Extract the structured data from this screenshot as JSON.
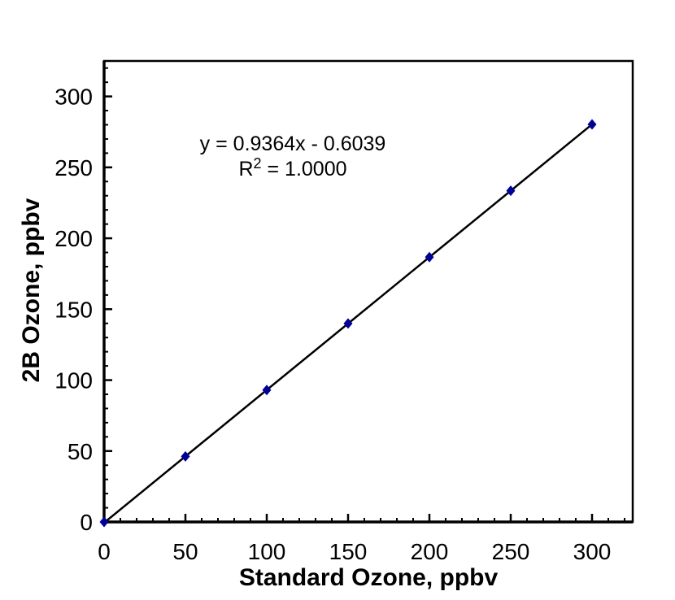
{
  "chart": {
    "xlabel": "Standard Ozone, ppbv",
    "ylabel": "2B Ozone, ppbv",
    "equation_line1": "y = 0.9364x - 0.6039",
    "r_squared_label": {
      "base": "R",
      "sup": "2",
      "rest": " = 1.0000"
    }
  },
  "chart_data": {
    "type": "scatter",
    "title": "",
    "xlabel": "Standard Ozone, ppbv",
    "ylabel": "2B Ozone, ppbv",
    "x": [
      0,
      50,
      100,
      150,
      200,
      250,
      300
    ],
    "y": [
      0,
      46.2,
      93.0,
      139.9,
      186.7,
      233.5,
      280.3
    ],
    "trendline": {
      "slope": 0.9364,
      "intercept": -0.6039,
      "equation": "y = 0.9364x - 0.6039",
      "r_squared": "1.0000",
      "x_start": 0,
      "x_end": 300
    },
    "xlim": [
      0,
      325
    ],
    "ylim": [
      0,
      325
    ],
    "x_major_ticks": [
      0,
      50,
      100,
      150,
      200,
      250,
      300
    ],
    "y_major_ticks": [
      0,
      50,
      100,
      150,
      200,
      250,
      300
    ],
    "minor_tick_step": 10,
    "grid": false,
    "legend": false,
    "marker": "diamond",
    "marker_color": "#000099",
    "line_color": "#000000",
    "axis_color": "#000000",
    "background": "#ffffff"
  }
}
